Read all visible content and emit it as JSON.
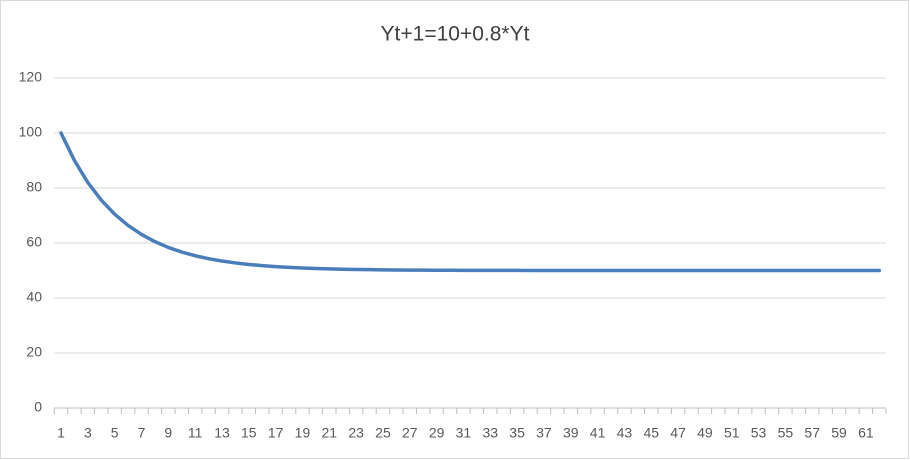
{
  "chart_data": {
    "type": "line",
    "title": "Yt+1=10+0.8*Yt",
    "categories": [
      1,
      null,
      3,
      null,
      5,
      null,
      7,
      null,
      9,
      null,
      11,
      null,
      13,
      null,
      15,
      null,
      17,
      null,
      19,
      null,
      21,
      null,
      23,
      null,
      25,
      null,
      27,
      null,
      29,
      null,
      31,
      null,
      33,
      null,
      35,
      null,
      37,
      null,
      39,
      null,
      41,
      null,
      43,
      null,
      45,
      null,
      47,
      null,
      49,
      null,
      51,
      null,
      53,
      null,
      55,
      null,
      57,
      null,
      59,
      null,
      61,
      null
    ],
    "values": [
      100,
      90,
      82,
      75.6,
      70.48,
      66.38,
      63.11,
      60.49,
      58.39,
      56.71,
      55.37,
      54.29,
      53.44,
      52.75,
      52.2,
      51.76,
      51.41,
      51.13,
      50.9,
      50.72,
      50.58,
      50.46,
      50.37,
      50.3,
      50.24,
      50.19,
      50.15,
      50.12,
      50.1,
      50.08,
      50.06,
      50.05,
      50.04,
      50.03,
      50.03,
      50.02,
      50.02,
      50.01,
      50.01,
      50.01,
      50.01,
      50.01,
      50,
      50,
      50,
      50,
      50,
      50,
      50,
      50,
      50,
      50,
      50,
      50,
      50,
      50,
      50,
      50,
      50,
      50,
      50,
      50
    ],
    "color": "#4a7ebb",
    "ylim": [
      0,
      120
    ],
    "yticks": [
      0,
      20,
      40,
      60,
      80,
      100,
      120
    ],
    "grid": true
  }
}
